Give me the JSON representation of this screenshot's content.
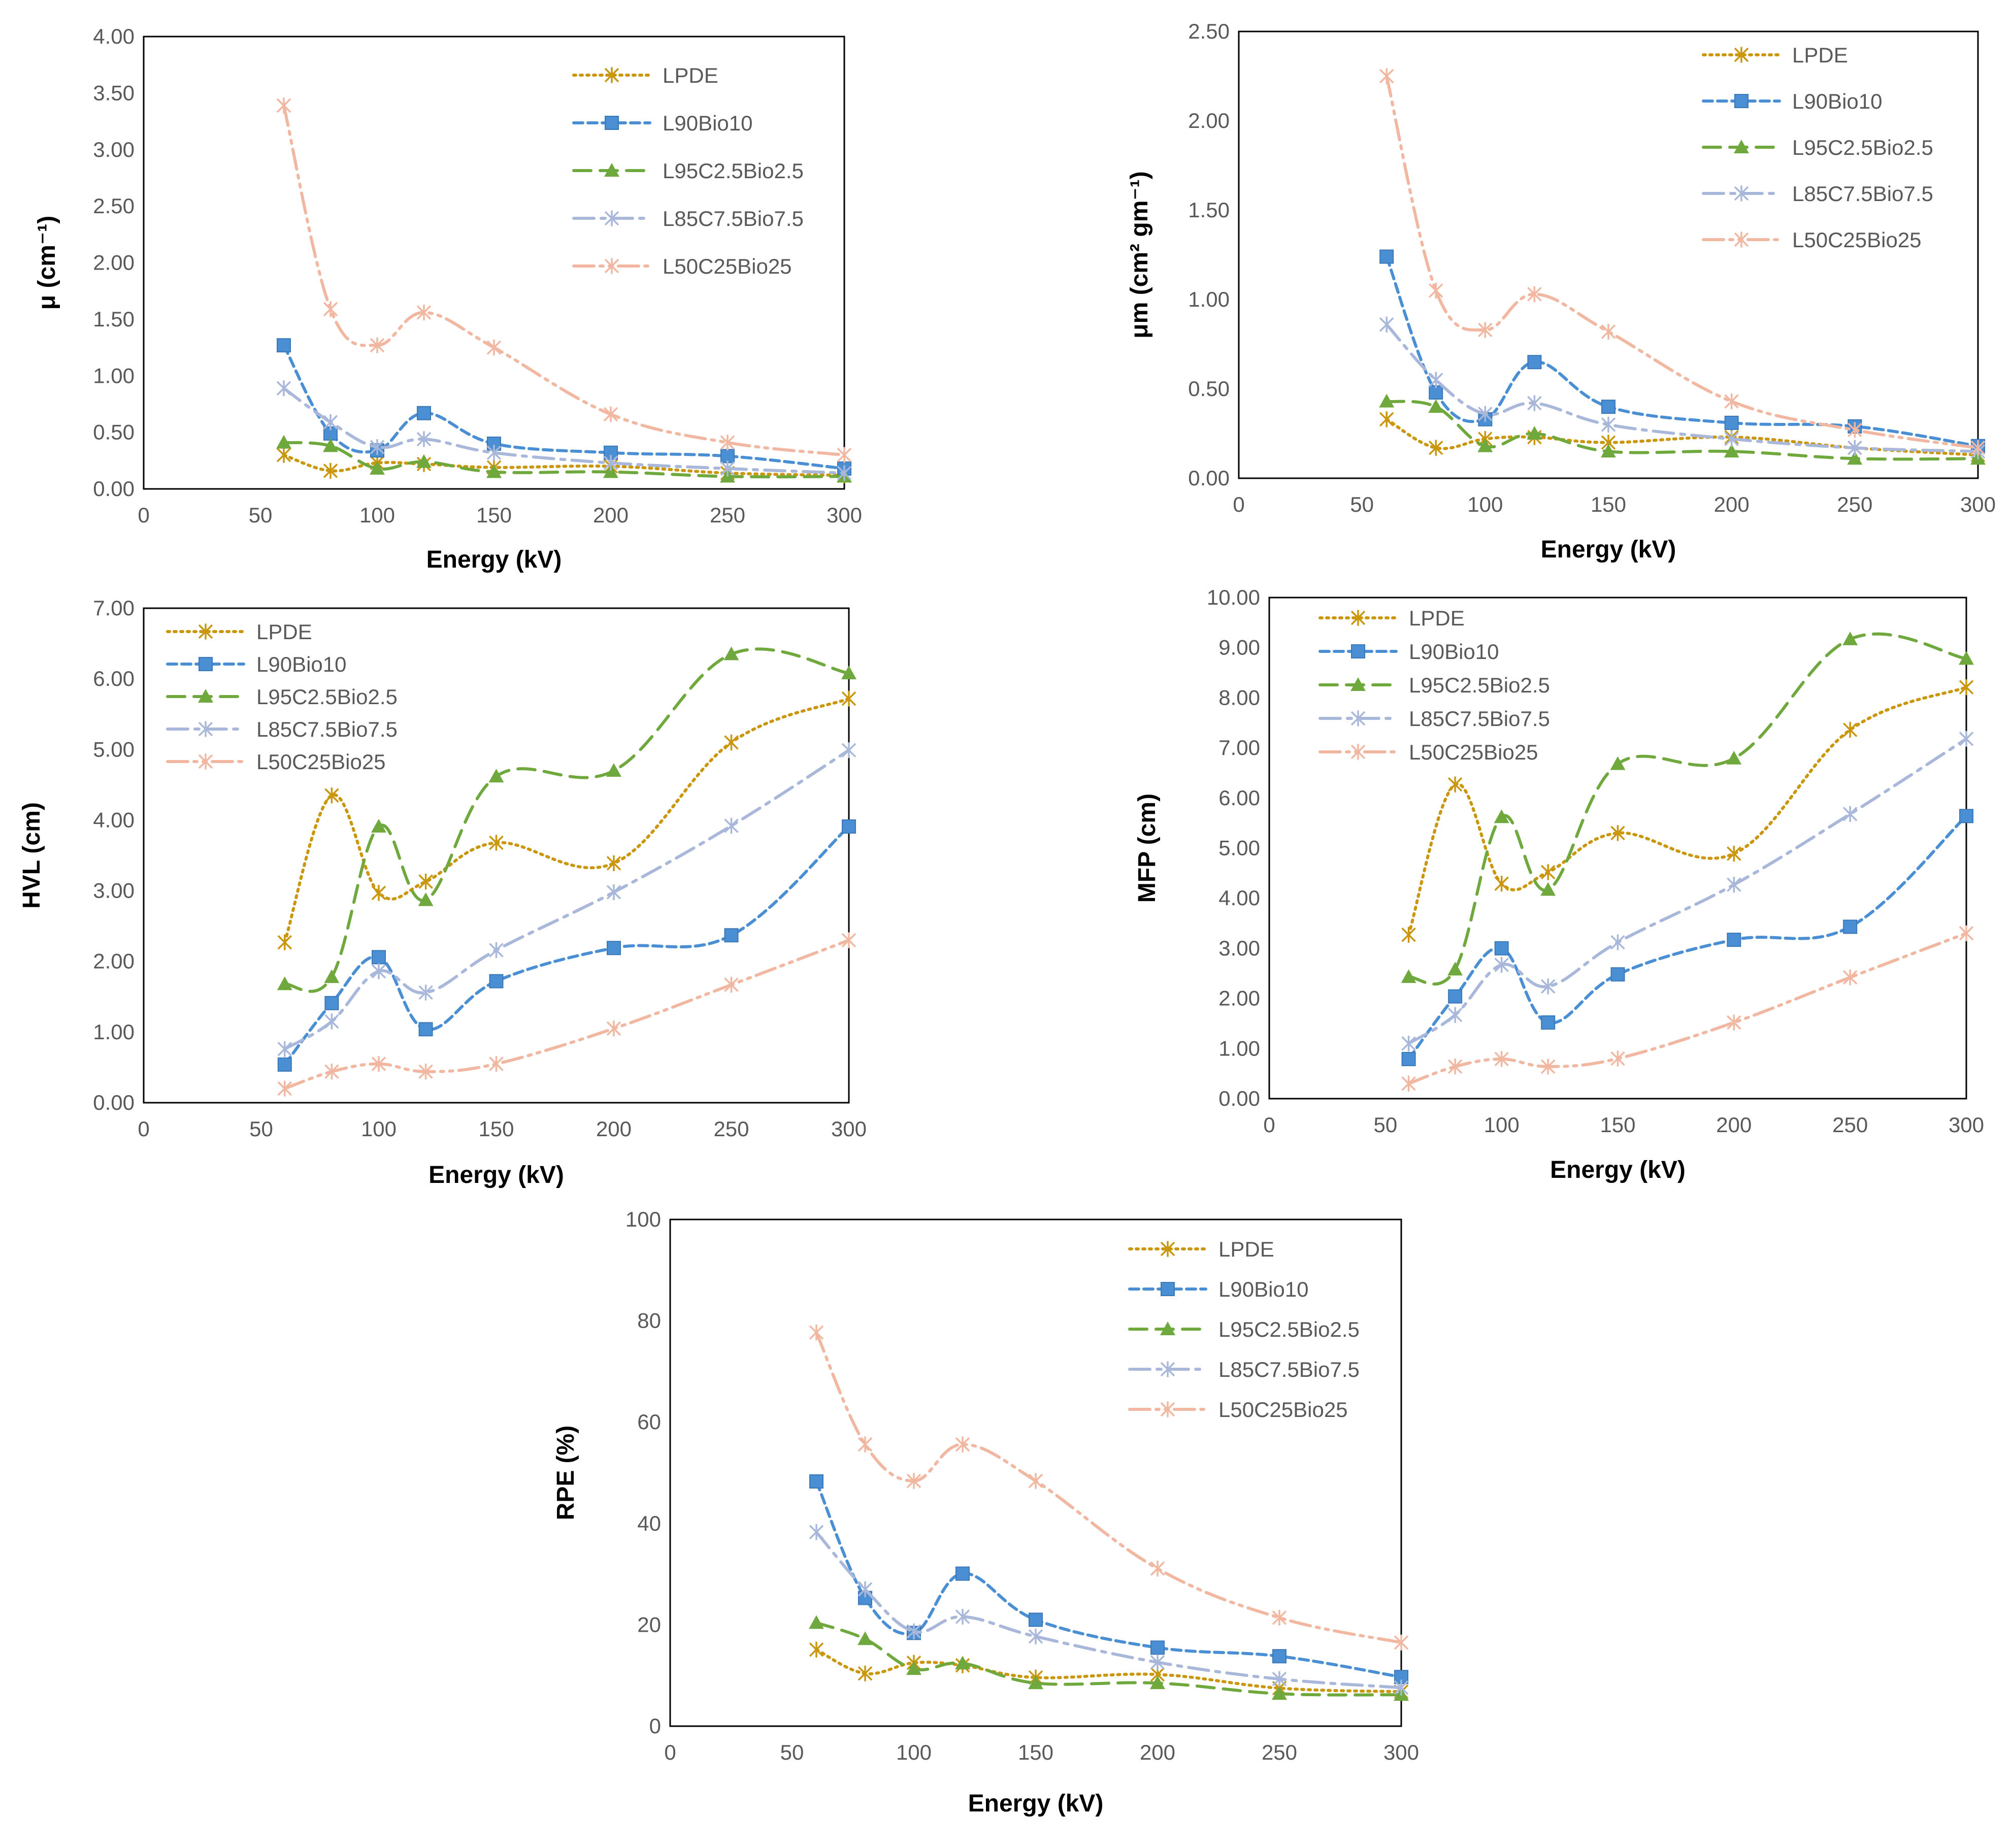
{
  "series_styles": [
    {
      "name": "LPDE",
      "color": "#C9960C",
      "dash": "4 9",
      "marker": "x"
    },
    {
      "name": "L90Bio10",
      "color": "#4A8FD4",
      "dash": "18 10",
      "marker": "square"
    },
    {
      "name": "L95C2.5Bio2.5",
      "color": "#6FA83C",
      "dash": "34 18",
      "marker": "triangle"
    },
    {
      "name": "L85C7.5Bio7.5",
      "color": "#A9B8DA",
      "dash": "40 14 8 14",
      "marker": "x"
    },
    {
      "name": "L50C25Bio25",
      "color": "#F2B7A0",
      "dash": "40 12 6 12 6 12",
      "marker": "x"
    }
  ],
  "chart_data": [
    {
      "type": "line",
      "id": "mu",
      "ylabel": "μ (cm⁻¹)",
      "xlabel": "Energy (kV)",
      "xlim": [
        0,
        300
      ],
      "ylim": [
        0,
        4
      ],
      "x_ticks": [
        "0",
        "50",
        "100",
        "150",
        "200",
        "250",
        "300"
      ],
      "y_ticks": [
        "0.00",
        "0.50",
        "1.00",
        "1.50",
        "2.00",
        "2.50",
        "3.00",
        "3.50",
        "4.00"
      ],
      "x": [
        60,
        80,
        100,
        120,
        150,
        200,
        250,
        300
      ],
      "legend": [
        "LPDE",
        "L90Bio10",
        "L95C2.5Bio2.5",
        "L85C7.5Bio7.5",
        "L50C25Bio25"
      ],
      "series": [
        {
          "name": "LPDE",
          "values": [
            0.3,
            0.16,
            0.23,
            0.22,
            0.19,
            0.2,
            0.14,
            0.12
          ]
        },
        {
          "name": "L90Bio10",
          "values": [
            1.27,
            0.49,
            0.34,
            0.67,
            0.4,
            0.32,
            0.29,
            0.18
          ]
        },
        {
          "name": "L95C2.5Bio2.5",
          "values": [
            0.41,
            0.38,
            0.18,
            0.24,
            0.15,
            0.15,
            0.11,
            0.11
          ]
        },
        {
          "name": "L85C7.5Bio7.5",
          "values": [
            0.89,
            0.59,
            0.37,
            0.44,
            0.32,
            0.23,
            0.18,
            0.14
          ]
        },
        {
          "name": "L50C25Bio25",
          "values": [
            3.39,
            1.59,
            1.27,
            1.56,
            1.25,
            0.66,
            0.41,
            0.3
          ]
        }
      ]
    },
    {
      "type": "line",
      "id": "mum",
      "ylabel": "μm (cm² gm⁻¹)",
      "xlabel": "Energy (kV)",
      "xlim": [
        0,
        300
      ],
      "ylim": [
        0,
        2.5
      ],
      "x_ticks": [
        "0",
        "50",
        "100",
        "150",
        "200",
        "250",
        "300"
      ],
      "y_ticks": [
        "0.00",
        "0.50",
        "1.00",
        "1.50",
        "2.00",
        "2.50"
      ],
      "x": [
        60,
        80,
        100,
        120,
        150,
        200,
        250,
        300
      ],
      "legend": [
        "LPDE",
        "L90Bio10",
        "L95C2.5Bio2.5",
        "L85C7.5Bio7.5",
        "L50C25Bio25"
      ],
      "series": [
        {
          "name": "LPDE",
          "values": [
            0.33,
            0.17,
            0.22,
            0.23,
            0.2,
            0.23,
            0.17,
            0.13
          ]
        },
        {
          "name": "L90Bio10",
          "values": [
            1.24,
            0.48,
            0.33,
            0.65,
            0.4,
            0.31,
            0.29,
            0.18
          ]
        },
        {
          "name": "L95C2.5Bio2.5",
          "values": [
            0.43,
            0.4,
            0.18,
            0.25,
            0.15,
            0.15,
            0.11,
            0.11
          ]
        },
        {
          "name": "L85C7.5Bio7.5",
          "values": [
            0.86,
            0.55,
            0.36,
            0.42,
            0.3,
            0.22,
            0.17,
            0.15
          ]
        },
        {
          "name": "L50C25Bio25",
          "values": [
            2.25,
            1.05,
            0.83,
            1.03,
            0.82,
            0.43,
            0.27,
            0.17
          ]
        }
      ]
    },
    {
      "type": "line",
      "id": "hvl",
      "ylabel": "HVL (cm)",
      "xlabel": "Energy (kV)",
      "xlim": [
        0,
        300
      ],
      "ylim": [
        0,
        7
      ],
      "x_ticks": [
        "0",
        "50",
        "100",
        "150",
        "200",
        "250",
        "300"
      ],
      "y_ticks": [
        "0.00",
        "1.00",
        "2.00",
        "3.00",
        "4.00",
        "5.00",
        "6.00",
        "7.00"
      ],
      "x": [
        60,
        80,
        100,
        120,
        150,
        200,
        250,
        300
      ],
      "legend": [
        "LPDE",
        "L90Bio10",
        "L95C2.5Bio2.5",
        "L85C7.5Bio7.5",
        "L50C25Bio25"
      ],
      "series": [
        {
          "name": "LPDE",
          "values": [
            2.27,
            4.35,
            2.97,
            3.13,
            3.68,
            3.39,
            5.1,
            5.72
          ]
        },
        {
          "name": "L90Bio10",
          "values": [
            0.54,
            1.41,
            2.06,
            1.04,
            1.72,
            2.19,
            2.37,
            3.91
          ]
        },
        {
          "name": "L95C2.5Bio2.5",
          "values": [
            1.68,
            1.78,
            3.91,
            2.87,
            4.62,
            4.7,
            6.35,
            6.08
          ]
        },
        {
          "name": "L85C7.5Bio7.5",
          "values": [
            0.76,
            1.15,
            1.86,
            1.56,
            2.16,
            2.98,
            3.92,
            4.99
          ]
        },
        {
          "name": "L50C25Bio25",
          "values": [
            0.2,
            0.44,
            0.55,
            0.44,
            0.55,
            1.05,
            1.67,
            2.3
          ]
        }
      ]
    },
    {
      "type": "line",
      "id": "mfp",
      "ylabel": "MFP (cm)",
      "xlabel": "Energy (kV)",
      "xlim": [
        0,
        300
      ],
      "ylim": [
        0,
        10
      ],
      "x_ticks": [
        "0",
        "50",
        "100",
        "150",
        "200",
        "250",
        "300"
      ],
      "y_ticks": [
        "0.00",
        "1.00",
        "2.00",
        "3.00",
        "4.00",
        "5.00",
        "6.00",
        "7.00",
        "8.00",
        "9.00",
        "10.00"
      ],
      "x": [
        60,
        80,
        100,
        120,
        150,
        200,
        250,
        300
      ],
      "legend": [
        "LPDE",
        "L90Bio10",
        "L95C2.5Bio2.5",
        "L85C7.5Bio7.5",
        "L50C25Bio25"
      ],
      "series": [
        {
          "name": "LPDE",
          "values": [
            3.27,
            6.27,
            4.29,
            4.52,
            5.3,
            4.89,
            7.36,
            8.21
          ]
        },
        {
          "name": "L90Bio10",
          "values": [
            0.79,
            2.04,
            3.0,
            1.52,
            2.48,
            3.17,
            3.43,
            5.64
          ]
        },
        {
          "name": "L95C2.5Bio2.5",
          "values": [
            2.43,
            2.58,
            5.62,
            4.17,
            6.68,
            6.79,
            9.17,
            8.78
          ]
        },
        {
          "name": "L85C7.5Bio7.5",
          "values": [
            1.1,
            1.67,
            2.67,
            2.24,
            3.12,
            4.27,
            5.68,
            7.18
          ]
        },
        {
          "name": "L50C25Bio25",
          "values": [
            0.3,
            0.64,
            0.79,
            0.64,
            0.8,
            1.52,
            2.42,
            3.3
          ]
        }
      ]
    },
    {
      "type": "line",
      "id": "rpe",
      "ylabel": "RPE (%)",
      "xlabel": "Energy (kV)",
      "xlim": [
        0,
        300
      ],
      "ylim": [
        0,
        100
      ],
      "x_ticks": [
        "0",
        "50",
        "100",
        "150",
        "200",
        "250",
        "300"
      ],
      "y_ticks": [
        "0",
        "20",
        "40",
        "60",
        "80",
        "100"
      ],
      "x": [
        60,
        80,
        100,
        120,
        150,
        200,
        250,
        300
      ],
      "legend": [
        "LPDE",
        "L90Bio10",
        "L95C2.5Bio2.5",
        "L85C7.5Bio7.5",
        "L50C25Bio25"
      ],
      "series": [
        {
          "name": "LPDE",
          "values": [
            15.1,
            10.4,
            12.5,
            12.0,
            9.6,
            10.2,
            7.5,
            6.8
          ]
        },
        {
          "name": "L90Bio10",
          "values": [
            48.3,
            25.3,
            18.4,
            30.1,
            21.0,
            15.5,
            13.8,
            9.7
          ]
        },
        {
          "name": "L95C2.5Bio2.5",
          "values": [
            20.4,
            17.2,
            11.3,
            12.4,
            8.5,
            8.5,
            6.4,
            6.2
          ]
        },
        {
          "name": "L85C7.5Bio7.5",
          "values": [
            38.3,
            27.0,
            18.7,
            21.6,
            17.7,
            12.6,
            9.3,
            7.6
          ]
        },
        {
          "name": "L50C25Bio25",
          "values": [
            77.7,
            55.6,
            48.4,
            55.6,
            48.4,
            31.1,
            21.4,
            16.5
          ]
        }
      ]
    }
  ]
}
